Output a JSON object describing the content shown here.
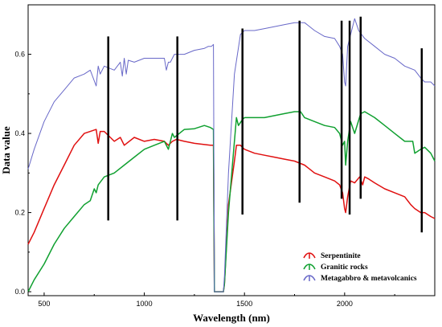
{
  "chart_data": {
    "type": "line",
    "xlabel": "Wavelength (nm)",
    "ylabel": "Data value",
    "xlim": [
      420,
      2450
    ],
    "ylim": [
      -0.01,
      0.725
    ],
    "x_ticks": [
      500,
      1000,
      1500,
      2000
    ],
    "x_tick_labels": [
      "500",
      "1000",
      "1500",
      "2000"
    ],
    "y_ticks": [
      0.0,
      0.2,
      0.4,
      0.6
    ],
    "y_tick_labels": [
      "0.0",
      "0.2",
      "0.4",
      "0.6"
    ],
    "grid": false,
    "legend_position": "bottom-right",
    "series": [
      {
        "name": "Serpentinite",
        "color": "#e01010",
        "x": [
          420,
          450,
          500,
          550,
          600,
          650,
          700,
          730,
          760,
          770,
          780,
          800,
          850,
          880,
          900,
          950,
          1000,
          1050,
          1100,
          1120,
          1140,
          1160,
          1200,
          1250,
          1300,
          1330,
          1345,
          1350,
          1360,
          1380,
          1395,
          1400,
          1420,
          1450,
          1460,
          1480,
          1500,
          1550,
          1600,
          1650,
          1700,
          1750,
          1800,
          1850,
          1900,
          1950,
          1975,
          1990,
          2000,
          2005,
          2015,
          2030,
          2050,
          2075,
          2090,
          2100,
          2120,
          2150,
          2200,
          2250,
          2300,
          2330,
          2350,
          2380,
          2400,
          2430,
          2450
        ],
        "values": [
          0.12,
          0.15,
          0.21,
          0.27,
          0.32,
          0.37,
          0.4,
          0.405,
          0.41,
          0.375,
          0.405,
          0.405,
          0.38,
          0.39,
          0.37,
          0.39,
          0.38,
          0.385,
          0.38,
          0.37,
          0.38,
          0.385,
          0.38,
          0.375,
          0.372,
          0.37,
          0.37,
          0.0,
          0.0,
          0.0,
          0.0,
          0.02,
          0.22,
          0.33,
          0.37,
          0.37,
          0.36,
          0.35,
          0.345,
          0.34,
          0.335,
          0.33,
          0.32,
          0.3,
          0.29,
          0.28,
          0.27,
          0.25,
          0.21,
          0.2,
          0.24,
          0.28,
          0.275,
          0.29,
          0.27,
          0.29,
          0.285,
          0.275,
          0.26,
          0.25,
          0.24,
          0.22,
          0.21,
          0.2,
          0.2,
          0.19,
          0.185
        ]
      },
      {
        "name": "Granitic rocks",
        "color": "#10a030",
        "x": [
          420,
          450,
          500,
          550,
          600,
          650,
          700,
          730,
          750,
          760,
          770,
          800,
          850,
          900,
          950,
          1000,
          1050,
          1100,
          1120,
          1140,
          1150,
          1200,
          1250,
          1300,
          1330,
          1345,
          1350,
          1360,
          1380,
          1395,
          1400,
          1420,
          1440,
          1450,
          1460,
          1470,
          1490,
          1500,
          1550,
          1600,
          1650,
          1700,
          1750,
          1780,
          1800,
          1850,
          1900,
          1950,
          1975,
          1990,
          2000,
          2005,
          2015,
          2030,
          2050,
          2080,
          2100,
          2150,
          2200,
          2250,
          2300,
          2340,
          2350,
          2380,
          2400,
          2430,
          2450
        ],
        "values": [
          0.0,
          0.03,
          0.07,
          0.12,
          0.16,
          0.19,
          0.22,
          0.23,
          0.26,
          0.25,
          0.27,
          0.29,
          0.3,
          0.32,
          0.34,
          0.36,
          0.37,
          0.38,
          0.36,
          0.4,
          0.39,
          0.41,
          0.412,
          0.42,
          0.415,
          0.41,
          0.0,
          0.0,
          0.0,
          0.0,
          0.02,
          0.2,
          0.32,
          0.38,
          0.44,
          0.42,
          0.435,
          0.44,
          0.44,
          0.44,
          0.445,
          0.45,
          0.455,
          0.455,
          0.44,
          0.43,
          0.42,
          0.415,
          0.4,
          0.37,
          0.38,
          0.32,
          0.38,
          0.43,
          0.4,
          0.45,
          0.455,
          0.44,
          0.42,
          0.4,
          0.38,
          0.38,
          0.35,
          0.36,
          0.365,
          0.35,
          0.33
        ]
      },
      {
        "name": "Metagabbro & metavolcanics",
        "color": "#6868c8",
        "x": [
          420,
          450,
          500,
          550,
          600,
          650,
          700,
          730,
          760,
          770,
          780,
          800,
          850,
          880,
          890,
          900,
          910,
          920,
          950,
          1000,
          1050,
          1100,
          1110,
          1120,
          1130,
          1150,
          1200,
          1250,
          1300,
          1320,
          1335,
          1345,
          1350,
          1360,
          1380,
          1395,
          1400,
          1420,
          1450,
          1480,
          1500,
          1550,
          1600,
          1650,
          1700,
          1750,
          1780,
          1800,
          1850,
          1900,
          1950,
          1975,
          1990,
          2000,
          2005,
          2015,
          2030,
          2050,
          2070,
          2100,
          2150,
          2200,
          2250,
          2300,
          2350,
          2380,
          2400,
          2430,
          2450
        ],
        "values": [
          0.31,
          0.36,
          0.43,
          0.48,
          0.51,
          0.54,
          0.55,
          0.56,
          0.52,
          0.57,
          0.55,
          0.57,
          0.56,
          0.58,
          0.545,
          0.59,
          0.55,
          0.585,
          0.58,
          0.59,
          0.59,
          0.59,
          0.56,
          0.58,
          0.58,
          0.6,
          0.6,
          0.61,
          0.615,
          0.62,
          0.62,
          0.625,
          0.0,
          0.0,
          0.0,
          0.0,
          0.04,
          0.3,
          0.55,
          0.65,
          0.66,
          0.66,
          0.665,
          0.67,
          0.675,
          0.68,
          0.68,
          0.68,
          0.66,
          0.645,
          0.64,
          0.62,
          0.6,
          0.53,
          0.52,
          0.62,
          0.65,
          0.69,
          0.66,
          0.64,
          0.62,
          0.6,
          0.59,
          0.57,
          0.56,
          0.54,
          0.53,
          0.53,
          0.52
        ]
      }
    ],
    "vertical_markers": [
      {
        "x": 820,
        "y_from": 0.18,
        "y_to": 0.645
      },
      {
        "x": 1165,
        "y_from": 0.18,
        "y_to": 0.645
      },
      {
        "x": 1490,
        "y_from": 0.195,
        "y_to": 0.665
      },
      {
        "x": 1775,
        "y_from": 0.225,
        "y_to": 0.685
      },
      {
        "x": 1985,
        "y_from": 0.235,
        "y_to": 0.685
      },
      {
        "x": 2025,
        "y_from": 0.195,
        "y_to": 0.685
      },
      {
        "x": 2080,
        "y_from": 0.235,
        "y_to": 0.695
      },
      {
        "x": 2385,
        "y_from": 0.15,
        "y_to": 0.615
      }
    ]
  }
}
